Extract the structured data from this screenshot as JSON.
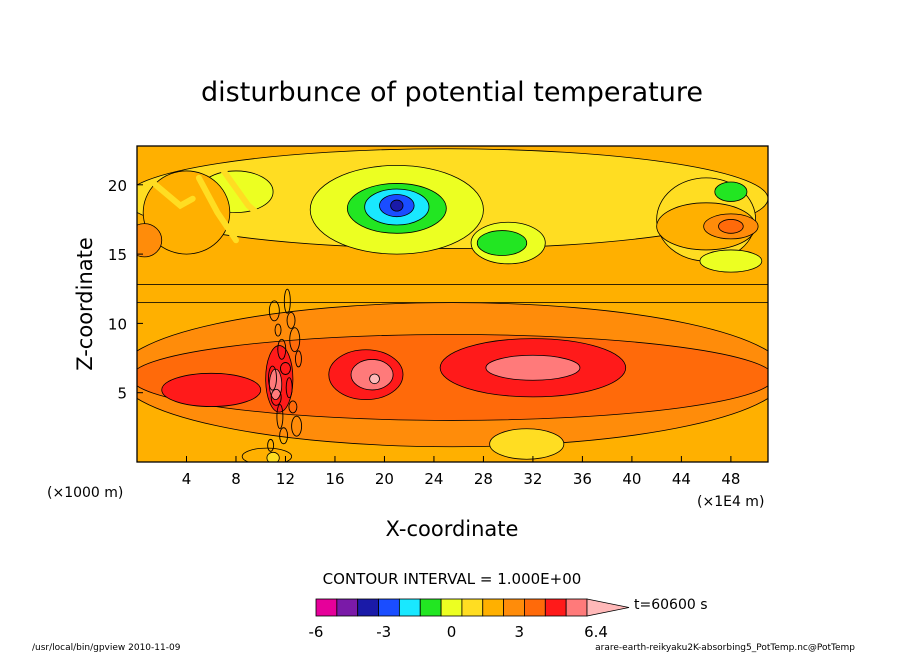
{
  "chart_data": {
    "type": "heatmap",
    "title": "disturbunce of potential temperature",
    "xlabel": "X-coordinate",
    "ylabel": "Z-coordinate",
    "x_unit_left": "(×1000 m)",
    "x_unit_right": "(×1E4 m)",
    "xlim": [
      0,
      51
    ],
    "ylim": [
      0,
      22.8
    ],
    "x_ticks": [
      4,
      8,
      12,
      16,
      20,
      24,
      28,
      32,
      36,
      40,
      44,
      48
    ],
    "y_ticks": [
      5,
      10,
      15,
      20
    ],
    "contour_interval_text": "CONTOUR INTERVAL = 1.000E+00",
    "time_label": "t=60600 s",
    "colorbar": {
      "levels": [
        -6,
        -5,
        -4,
        -3,
        -2,
        -1,
        0,
        1,
        2,
        3,
        4,
        5,
        6
      ],
      "colors": [
        "#e6009a",
        "#7a1aa8",
        "#1a1aa8",
        "#1a4dff",
        "#19e8ff",
        "#22e622",
        "#ecff22",
        "#ffdd22",
        "#ffb000",
        "#ff8c0a",
        "#ff6a0a",
        "#ff1a1a",
        "#ff7a7a",
        "#ffb8b8"
      ],
      "tick_labels": [
        "-6",
        "-3",
        "0",
        "3",
        "6.4"
      ],
      "tick_values": [
        -6,
        -3,
        0,
        3,
        6.4
      ]
    },
    "background_level": 1,
    "regions": [
      {
        "level": 0,
        "cx": 25,
        "cy": 19,
        "rx": 26,
        "ry": 3.6
      },
      {
        "level": 0,
        "cx": 46,
        "cy": 17.5,
        "rx": 4,
        "ry": 3
      },
      {
        "level": -1,
        "cx": 8,
        "cy": 19.5,
        "rx": 3,
        "ry": 1.5
      },
      {
        "level": -1,
        "cx": 21,
        "cy": 18.2,
        "rx": 7,
        "ry": 3.2
      },
      {
        "level": -1,
        "cx": 30,
        "cy": 15.8,
        "rx": 3,
        "ry": 1.5
      },
      {
        "level": -1,
        "cx": 48,
        "cy": 14.5,
        "rx": 2.5,
        "ry": 0.8
      },
      {
        "level": -2,
        "cx": 21,
        "cy": 18.3,
        "rx": 4,
        "ry": 1.8
      },
      {
        "level": -2,
        "cx": 29.5,
        "cy": 15.8,
        "rx": 2,
        "ry": 0.9
      },
      {
        "level": -2,
        "cx": 48,
        "cy": 19.5,
        "rx": 1.3,
        "ry": 0.7
      },
      {
        "level": -3,
        "cx": 21,
        "cy": 18.4,
        "rx": 2.6,
        "ry": 1.3
      },
      {
        "level": -4,
        "cx": 21,
        "cy": 18.5,
        "rx": 1.4,
        "ry": 0.8
      },
      {
        "level": -5,
        "cx": 21,
        "cy": 18.5,
        "rx": 0.5,
        "ry": 0.4
      },
      {
        "level": 1,
        "cx": 4,
        "cy": 18,
        "rx": 3.5,
        "ry": 3
      },
      {
        "level": 1,
        "cx": 46,
        "cy": 17,
        "rx": 4,
        "ry": 1.7
      },
      {
        "level": 2,
        "cx": 0.6,
        "cy": 16,
        "rx": 1.4,
        "ry": 1.2
      },
      {
        "level": 2,
        "cx": 48,
        "cy": 17,
        "rx": 2.2,
        "ry": 0.9
      },
      {
        "level": 3,
        "cx": 48,
        "cy": 17,
        "rx": 1,
        "ry": 0.5
      },
      {
        "level": 2,
        "cx": 25.5,
        "cy": 6.3,
        "rx": 27,
        "ry": 5.2
      },
      {
        "level": 3,
        "cx": 25.5,
        "cy": 6.1,
        "rx": 26,
        "ry": 3.1
      },
      {
        "level": 4,
        "cx": 6,
        "cy": 5.2,
        "rx": 4,
        "ry": 1.2
      },
      {
        "level": 4,
        "cx": 18.5,
        "cy": 6.3,
        "rx": 3,
        "ry": 1.8
      },
      {
        "level": 4,
        "cx": 32,
        "cy": 6.8,
        "rx": 7.5,
        "ry": 2.1
      },
      {
        "level": 4,
        "cx": 11.5,
        "cy": 6,
        "rx": 1.1,
        "ry": 2.4
      },
      {
        "level": 5,
        "cx": 19,
        "cy": 6.3,
        "rx": 1.7,
        "ry": 1.1
      },
      {
        "level": 5,
        "cx": 32,
        "cy": 6.8,
        "rx": 3.8,
        "ry": 0.9
      },
      {
        "level": 5,
        "cx": 11.2,
        "cy": 5.6,
        "rx": 0.5,
        "ry": 1.1
      },
      {
        "level": 6,
        "cx": 19.2,
        "cy": 6,
        "rx": 0.4,
        "ry": 0.35
      },
      {
        "level": 0,
        "cx": 31.5,
        "cy": 1.3,
        "rx": 3,
        "ry": 1.1
      },
      {
        "level": 1,
        "cx": 10.5,
        "cy": 0.4,
        "rx": 2,
        "ry": 0.6
      },
      {
        "level": 0,
        "cx": 11,
        "cy": 0.3,
        "rx": 0.5,
        "ry": 0.4
      }
    ],
    "bands": [
      {
        "level": 1,
        "ymin": 11.5,
        "ymax": 12.8
      }
    ],
    "strokes": [
      {
        "level": 0,
        "points": [
          [
            1.5,
            20
          ],
          [
            3.5,
            18.5
          ],
          [
            4.5,
            19
          ]
        ]
      },
      {
        "level": 0,
        "points": [
          [
            5,
            20.5
          ],
          [
            6.5,
            18
          ],
          [
            8,
            16
          ]
        ]
      },
      {
        "level": 0,
        "points": [
          [
            7,
            21
          ],
          [
            9,
            18.5
          ],
          [
            11,
            17
          ]
        ]
      }
    ],
    "plume": {
      "x_start": 10.8,
      "x_end": 13.2,
      "y_start": 1.2,
      "y_end": 11.6,
      "count": 16
    }
  },
  "footer": {
    "left": "/usr/local/bin/gpview  2010-11-09",
    "right": "arare-earth-reikyaku2K-absorbing5_PotTemp.nc@PotTemp"
  }
}
